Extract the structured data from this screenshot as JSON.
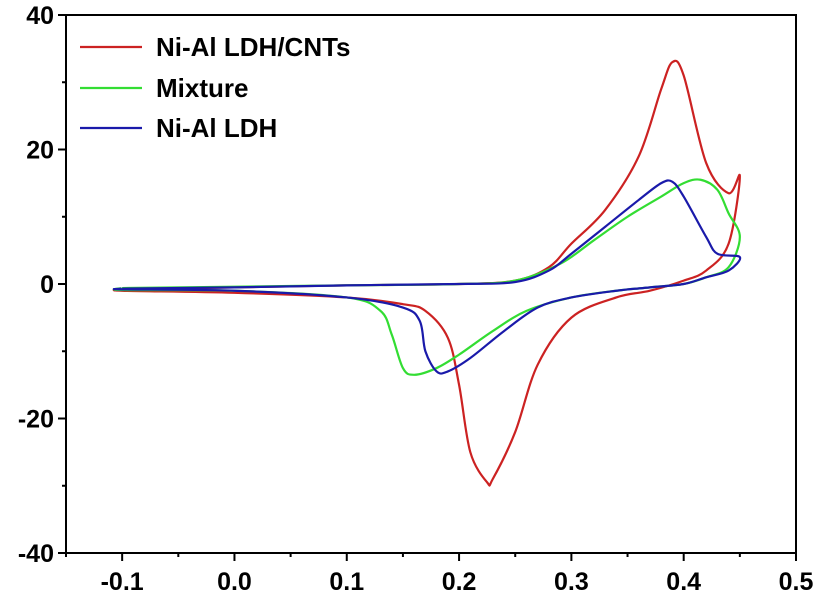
{
  "chart_data": {
    "type": "line",
    "title": "",
    "xlabel": "",
    "ylabel": "",
    "xlim": [
      -0.15,
      0.5
    ],
    "ylim": [
      -40,
      40
    ],
    "x_ticks": [
      -0.1,
      0.0,
      0.1,
      0.2,
      0.3,
      0.4,
      0.5
    ],
    "x_tick_labels": [
      "-0.1",
      "0.0",
      "0.1",
      "0.2",
      "0.3",
      "0.4",
      "0.5"
    ],
    "y_ticks": [
      -40,
      -20,
      0,
      20,
      40
    ],
    "y_tick_labels": [
      "-40",
      "-20",
      "0",
      "20",
      "40"
    ],
    "grid": false,
    "legend_position": "top-left",
    "series": [
      {
        "name": "Ni-Al LDH/CNTs",
        "color": "#cc2222",
        "points": [
          [
            -0.1,
            -0.8
          ],
          [
            0.0,
            -0.5
          ],
          [
            0.1,
            -0.2
          ],
          [
            0.2,
            0.0
          ],
          [
            0.25,
            0.5
          ],
          [
            0.28,
            2.5
          ],
          [
            0.3,
            6.0
          ],
          [
            0.33,
            11.0
          ],
          [
            0.36,
            19.0
          ],
          [
            0.38,
            29.0
          ],
          [
            0.39,
            33.0
          ],
          [
            0.4,
            31.0
          ],
          [
            0.42,
            18.0
          ],
          [
            0.44,
            13.5
          ],
          [
            0.45,
            16.0
          ],
          [
            0.44,
            6.0
          ],
          [
            0.42,
            2.0
          ],
          [
            0.4,
            0.5
          ],
          [
            0.37,
            -1.0
          ],
          [
            0.34,
            -2.0
          ],
          [
            0.3,
            -5.0
          ],
          [
            0.27,
            -12.0
          ],
          [
            0.25,
            -22.0
          ],
          [
            0.23,
            -29.0
          ],
          [
            0.225,
            -29.5
          ],
          [
            0.21,
            -25.0
          ],
          [
            0.2,
            -15.0
          ],
          [
            0.19,
            -8.0
          ],
          [
            0.17,
            -4.0
          ],
          [
            0.15,
            -3.0
          ],
          [
            0.1,
            -2.0
          ],
          [
            0.0,
            -1.3
          ],
          [
            -0.1,
            -1.0
          ]
        ]
      },
      {
        "name": "Mixture",
        "color": "#33dd33",
        "points": [
          [
            -0.1,
            -0.6
          ],
          [
            0.0,
            -0.4
          ],
          [
            0.1,
            -0.2
          ],
          [
            0.2,
            0.0
          ],
          [
            0.25,
            0.5
          ],
          [
            0.29,
            3.0
          ],
          [
            0.32,
            6.5
          ],
          [
            0.35,
            10.0
          ],
          [
            0.38,
            13.0
          ],
          [
            0.4,
            15.0
          ],
          [
            0.415,
            15.5
          ],
          [
            0.43,
            14.0
          ],
          [
            0.44,
            10.5
          ],
          [
            0.45,
            7.0
          ],
          [
            0.44,
            2.5
          ],
          [
            0.42,
            1.0
          ],
          [
            0.4,
            0.0
          ],
          [
            0.37,
            -0.5
          ],
          [
            0.34,
            -1.0
          ],
          [
            0.3,
            -2.0
          ],
          [
            0.26,
            -4.0
          ],
          [
            0.23,
            -7.0
          ],
          [
            0.2,
            -10.5
          ],
          [
            0.18,
            -12.5
          ],
          [
            0.16,
            -13.5
          ],
          [
            0.15,
            -12.5
          ],
          [
            0.14,
            -7.5
          ],
          [
            0.13,
            -4.0
          ],
          [
            0.1,
            -2.0
          ],
          [
            0.0,
            -1.0
          ],
          [
            -0.1,
            -0.9
          ]
        ]
      },
      {
        "name": "Ni-Al LDH",
        "color": "#1a1aaa",
        "points": [
          [
            -0.1,
            -0.7
          ],
          [
            0.0,
            -0.5
          ],
          [
            0.1,
            -0.2
          ],
          [
            0.2,
            0.0
          ],
          [
            0.25,
            0.3
          ],
          [
            0.28,
            2.0
          ],
          [
            0.3,
            4.5
          ],
          [
            0.33,
            8.5
          ],
          [
            0.36,
            12.5
          ],
          [
            0.38,
            15.0
          ],
          [
            0.39,
            15.2
          ],
          [
            0.4,
            13.0
          ],
          [
            0.42,
            7.0
          ],
          [
            0.43,
            4.5
          ],
          [
            0.45,
            4.0
          ],
          [
            0.44,
            2.0
          ],
          [
            0.42,
            1.0
          ],
          [
            0.4,
            0.0
          ],
          [
            0.37,
            -0.5
          ],
          [
            0.34,
            -1.0
          ],
          [
            0.3,
            -2.0
          ],
          [
            0.27,
            -3.5
          ],
          [
            0.24,
            -7.0
          ],
          [
            0.21,
            -11.0
          ],
          [
            0.19,
            -13.0
          ],
          [
            0.18,
            -13.0
          ],
          [
            0.17,
            -10.0
          ],
          [
            0.165,
            -5.5
          ],
          [
            0.15,
            -3.5
          ],
          [
            0.1,
            -2.0
          ],
          [
            0.0,
            -1.0
          ],
          [
            -0.1,
            -0.8
          ]
        ]
      }
    ]
  }
}
